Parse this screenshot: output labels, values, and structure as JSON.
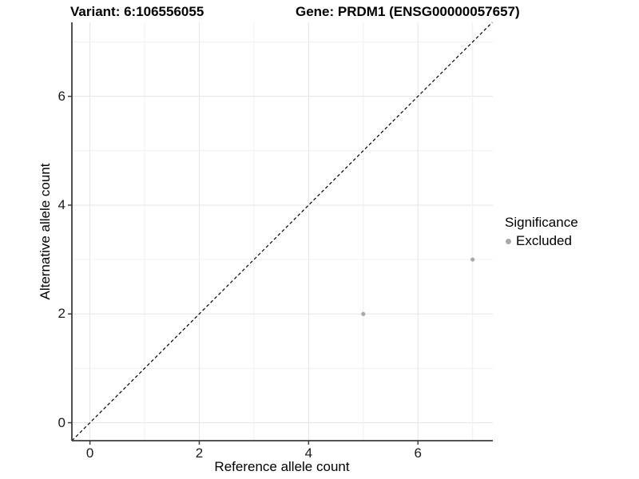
{
  "chart_data": {
    "type": "scatter",
    "titles": {
      "left": "Variant: 6:106556055",
      "right": "Gene: PRDM1 (ENSG00000057657)"
    },
    "xlabel": "Reference allele count",
    "ylabel": "Alternative allele count",
    "xlim": [
      -0.33,
      7.37
    ],
    "ylim": [
      -0.33,
      7.36
    ],
    "x_ticks": [
      0,
      2,
      4,
      6
    ],
    "y_ticks": [
      0,
      2,
      4,
      6
    ],
    "grid_ticks": [
      0,
      1,
      2,
      3,
      4,
      5,
      6,
      7
    ],
    "grid": true,
    "legend_position": "right",
    "identity_line": {
      "type": "dashed",
      "slope": 1,
      "intercept": 0,
      "color": "#000000"
    },
    "series": [
      {
        "name": "Excluded",
        "color": "#a9a9a9",
        "points": [
          {
            "x": 5,
            "y": 2
          },
          {
            "x": 7,
            "y": 3
          }
        ]
      }
    ]
  },
  "legend": {
    "title": "Significance",
    "items": [
      {
        "label": "Excluded",
        "swatch_color": "#a9a9a9"
      }
    ]
  },
  "colors": {
    "background": "#ffffff",
    "grid_major": "#e5e5e5",
    "grid_minor": "#f0f0f0",
    "axis_line": "#3c3c3c",
    "tick_text": "#1a1a1a"
  }
}
